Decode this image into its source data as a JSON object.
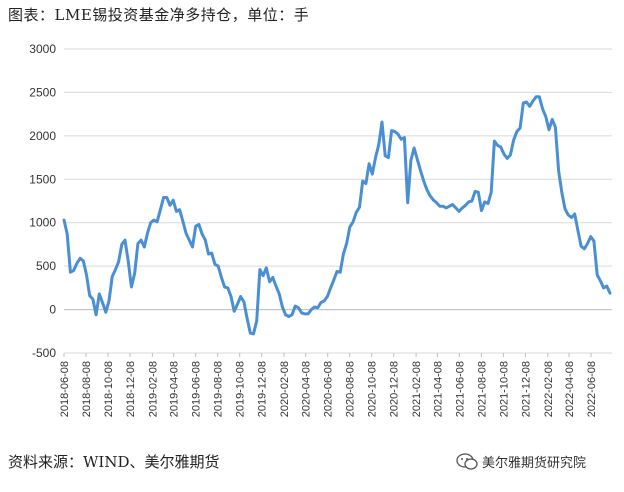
{
  "title": "图表：LME锡投资基金净多持仓，单位：手",
  "source": "资料来源：WIND、美尔雅期货",
  "watermark": "美尔雅期货研究院",
  "chart_data": {
    "type": "line",
    "title": "图表：LME锡投资基金净多持仓，单位：手",
    "xlabel": "",
    "ylabel": "",
    "ylim": [
      -500,
      3000
    ],
    "yticks": [
      -500,
      0,
      500,
      1000,
      1500,
      2000,
      2500,
      3000
    ],
    "xticks": [
      "2018-06-08",
      "2018-08-08",
      "2018-10-08",
      "2018-12-08",
      "2019-02-08",
      "2019-04-08",
      "2019-06-08",
      "2019-08-08",
      "2019-10-08",
      "2019-12-08",
      "2020-02-08",
      "2020-04-08",
      "2020-06-08",
      "2020-08-08",
      "2020-10-08",
      "2020-12-08",
      "2021-02-08",
      "2021-04-08",
      "2021-06-08",
      "2021-08-08",
      "2021-10-08",
      "2021-12-08",
      "2022-02-08",
      "2022-04-08",
      "2022-06-08"
    ],
    "grid": true,
    "color": "#4a8fd4",
    "x_start": "2018-06-08",
    "x_end": "2022-08-05",
    "values": [
      1030,
      870,
      430,
      450,
      530,
      590,
      560,
      400,
      160,
      120,
      -60,
      180,
      80,
      -30,
      100,
      380,
      460,
      550,
      750,
      800,
      560,
      260,
      420,
      760,
      800,
      720,
      880,
      1000,
      1030,
      1010,
      1150,
      1290,
      1290,
      1200,
      1260,
      1130,
      1150,
      1020,
      880,
      800,
      720,
      960,
      980,
      870,
      800,
      640,
      650,
      520,
      500,
      370,
      260,
      250,
      150,
      -20,
      60,
      150,
      90,
      -100,
      -270,
      -280,
      -130,
      460,
      390,
      480,
      320,
      370,
      270,
      180,
      30,
      -60,
      -80,
      -60,
      40,
      20,
      -40,
      -50,
      -50,
      0,
      30,
      20,
      80,
      100,
      150,
      250,
      340,
      440,
      430,
      640,
      760,
      950,
      1010,
      1120,
      1180,
      1480,
      1450,
      1680,
      1560,
      1750,
      1900,
      2160,
      1770,
      1750,
      2060,
      2050,
      2020,
      1960,
      1980,
      1230,
      1720,
      1860,
      1730,
      1600,
      1480,
      1380,
      1310,
      1260,
      1230,
      1190,
      1190,
      1170,
      1190,
      1210,
      1170,
      1130,
      1170,
      1200,
      1240,
      1250,
      1360,
      1350,
      1140,
      1240,
      1220,
      1350,
      1940,
      1890,
      1870,
      1790,
      1740,
      1780,
      1950,
      2050,
      2090,
      2380,
      2390,
      2340,
      2400,
      2450,
      2450,
      2310,
      2220,
      2070,
      2190,
      2100,
      1600,
      1350,
      1160,
      1090,
      1060,
      1100,
      910,
      730,
      700,
      760,
      840,
      790,
      400,
      330,
      250,
      270,
      190
    ]
  }
}
